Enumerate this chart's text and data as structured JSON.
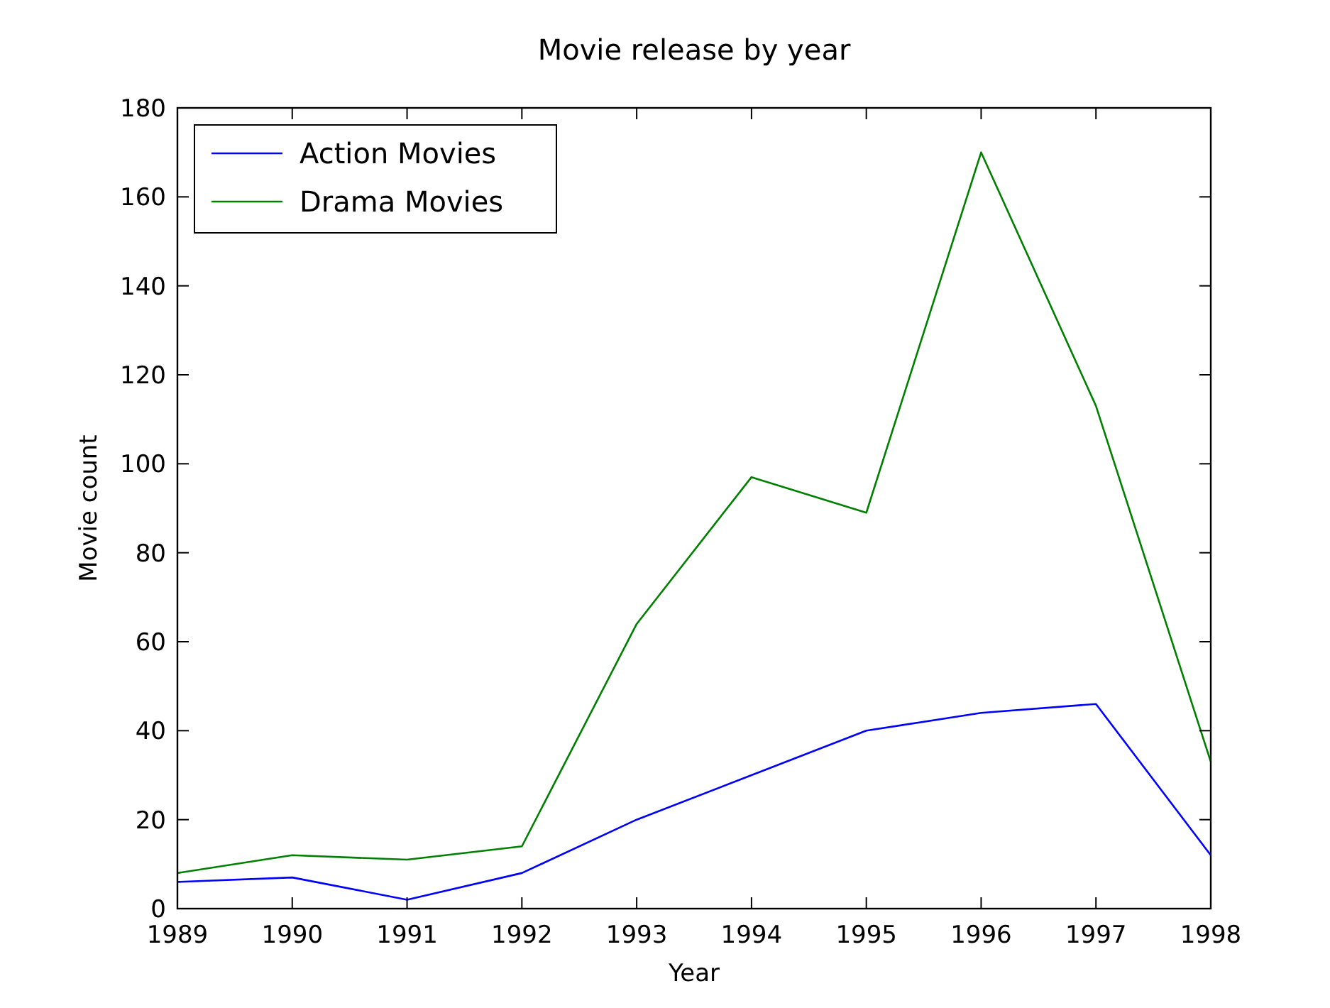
{
  "chart_data": {
    "type": "line",
    "title": "Movie release by year",
    "xlabel": "Year",
    "ylabel": "Movie count",
    "x": [
      1989,
      1990,
      1991,
      1992,
      1993,
      1994,
      1995,
      1996,
      1997,
      1998
    ],
    "series": [
      {
        "name": "Action Movies",
        "color": "#0000ff",
        "values": [
          6,
          7,
          2,
          8,
          20,
          30,
          40,
          44,
          46,
          12
        ]
      },
      {
        "name": "Drama Movies",
        "color": "#008000",
        "values": [
          8,
          12,
          11,
          14,
          64,
          97,
          89,
          170,
          113,
          33
        ]
      }
    ],
    "xlim": [
      1989,
      1998
    ],
    "xticks": [
      1989,
      1990,
      1991,
      1992,
      1993,
      1994,
      1995,
      1996,
      1997,
      1998
    ],
    "ylim": [
      0,
      180
    ],
    "yticks": [
      0,
      20,
      40,
      60,
      80,
      100,
      120,
      140,
      160,
      180
    ],
    "legend": "top left",
    "grid": false,
    "marker": "none",
    "line_style": "solid"
  }
}
